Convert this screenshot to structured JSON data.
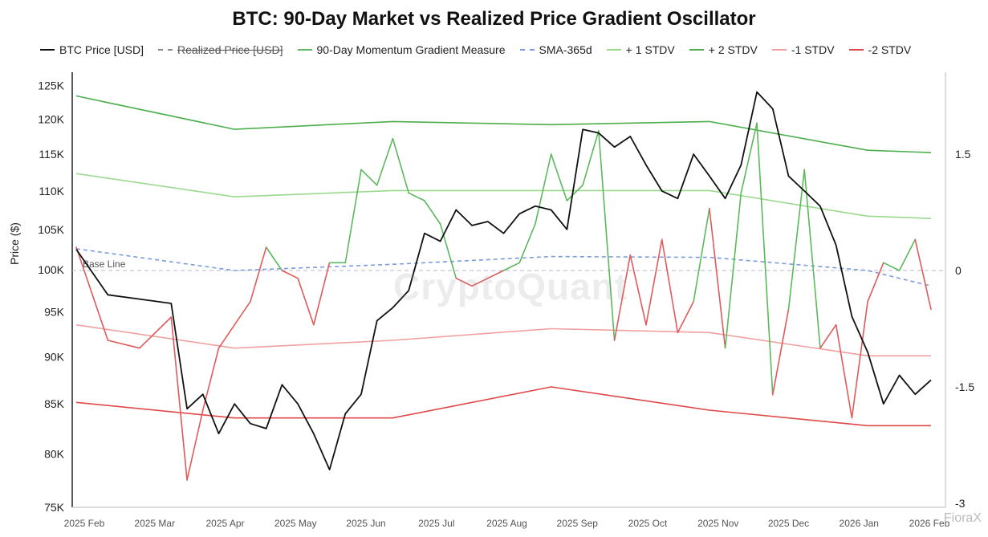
{
  "chart_data": {
    "type": "line",
    "title": "BTC: 90-Day Market vs Realized Price Gradient Oscillator",
    "ylabel": "Price ($)",
    "left_axis_ticks": [
      "125K",
      "120K",
      "115K",
      "110K",
      "105K",
      "100K",
      "95K",
      "90K",
      "85K",
      "80K",
      "75K"
    ],
    "right_axis_ticks": [
      "1.5",
      "0",
      "-1.5",
      "-3"
    ],
    "x_ticks": [
      "2025 Feb",
      "2025 Mar",
      "2025 Apr",
      "2025 May",
      "2025 Jun",
      "2025 Jul",
      "2025 Aug",
      "2025 Sep",
      "2025 Oct",
      "2025 Nov",
      "2025 Dec",
      "2026 Jan",
      "2026 Feb"
    ],
    "annotation": "Base Line",
    "legend": [
      {
        "label": "BTC Price [USD]",
        "color": "#111111",
        "style": "solid"
      },
      {
        "label": "Realized Price [USD]",
        "color": "#888888",
        "style": "dashed",
        "hidden": true
      },
      {
        "label": "90-Day Momentum Gradient Measure",
        "color": "#5cb85c",
        "style": "solid"
      },
      {
        "label": "SMA-365d",
        "color": "#7b9be0",
        "style": "dashed"
      },
      {
        "label": "+ 1 STDV",
        "color": "#9bd98f",
        "style": "solid"
      },
      {
        "label": "+ 2 STDV",
        "color": "#4cae4c",
        "style": "solid"
      },
      {
        "label": "-1 STDV",
        "color": "#f0a0a0",
        "style": "solid"
      },
      {
        "label": "-2 STDV",
        "color": "#e04848",
        "style": "solid"
      }
    ],
    "series": [
      {
        "name": "BTC Price [USD]",
        "axis": "left",
        "x": [
          0,
          2,
          4,
          6,
          7,
          8,
          9,
          10,
          11,
          12,
          13,
          14,
          15,
          16,
          17,
          18,
          19,
          20,
          21,
          22,
          23,
          24,
          25,
          26,
          27,
          28,
          29,
          30,
          31,
          32,
          33,
          34,
          35,
          36,
          37,
          38,
          39,
          40,
          41,
          42,
          43,
          44,
          45,
          46,
          47,
          48,
          49,
          50,
          51,
          52,
          53,
          54
        ],
        "values": [
          102500,
          97000,
          96500,
          96000,
          84500,
          86000,
          82000,
          85000,
          83000,
          82500,
          87000,
          85000,
          82000,
          78500,
          84000,
          86000,
          94000,
          95500,
          97500,
          104500,
          103500,
          107500,
          105500,
          106000,
          104500,
          107000,
          108000,
          107500,
          105000,
          118500,
          118000,
          116000,
          117500,
          113500,
          110000,
          109000,
          115000,
          112000,
          109000,
          113500,
          124000,
          121500,
          112000,
          110000,
          108000,
          103000,
          94500,
          90500,
          85000,
          88000,
          86000,
          87500
        ]
      },
      {
        "name": "90-Day Momentum Gradient Measure",
        "axis": "right",
        "x": [
          0,
          2,
          4,
          6,
          7,
          8,
          9,
          10,
          11,
          12,
          13,
          14,
          15,
          16,
          17,
          18,
          19,
          20,
          21,
          22,
          23,
          24,
          25,
          26,
          27,
          28,
          29,
          30,
          31,
          32,
          33,
          34,
          35,
          36,
          37,
          38,
          39,
          40,
          41,
          42,
          43,
          44,
          45,
          46,
          47,
          48,
          49,
          50,
          51,
          52,
          53,
          54
        ],
        "values": [
          0.3,
          -0.9,
          -1.0,
          -0.6,
          -2.7,
          -1.8,
          -1.0,
          -0.7,
          -0.4,
          0.3,
          0.0,
          -0.1,
          -0.7,
          0.1,
          0.1,
          1.3,
          1.1,
          1.7,
          1.0,
          0.9,
          0.6,
          -0.1,
          -0.2,
          -0.1,
          0.0,
          0.1,
          0.6,
          1.5,
          0.9,
          1.1,
          1.8,
          -0.9,
          0.2,
          -0.7,
          0.4,
          -0.8,
          -0.4,
          0.8,
          -1.0,
          1.0,
          1.9,
          -1.6,
          -0.5,
          1.3,
          -1.0,
          -0.7,
          -1.9,
          -0.4,
          0.1,
          0.0,
          0.4,
          -0.5
        ]
      },
      {
        "name": "SMA-365d",
        "axis": "right",
        "x": [
          0,
          10,
          20,
          30,
          40,
          50,
          54
        ],
        "values": [
          0.28,
          0.0,
          0.08,
          0.18,
          0.17,
          0.0,
          -0.2
        ]
      },
      {
        "name": "+ 1 STDV",
        "axis": "right",
        "x": [
          0,
          10,
          20,
          30,
          40,
          50,
          54
        ],
        "values": [
          1.25,
          0.95,
          1.03,
          1.03,
          1.03,
          0.7,
          0.67
        ]
      },
      {
        "name": "+ 2 STDV",
        "axis": "right",
        "x": [
          0,
          10,
          20,
          30,
          40,
          50,
          54
        ],
        "values": [
          2.25,
          1.82,
          1.92,
          1.88,
          1.92,
          1.55,
          1.52
        ]
      },
      {
        "name": "-1 STDV",
        "axis": "right",
        "x": [
          0,
          10,
          20,
          30,
          40,
          50,
          54
        ],
        "values": [
          -0.7,
          -1.0,
          -0.9,
          -0.75,
          -0.8,
          -1.1,
          -1.1
        ]
      },
      {
        "name": "-2 STDV",
        "axis": "right",
        "x": [
          0,
          10,
          20,
          30,
          40,
          50,
          54
        ],
        "values": [
          -1.7,
          -1.9,
          -1.9,
          -1.5,
          -1.8,
          -2.0,
          -2.0
        ]
      }
    ]
  },
  "watermark": "CryptoQuant",
  "corner_mark": "FioraX"
}
